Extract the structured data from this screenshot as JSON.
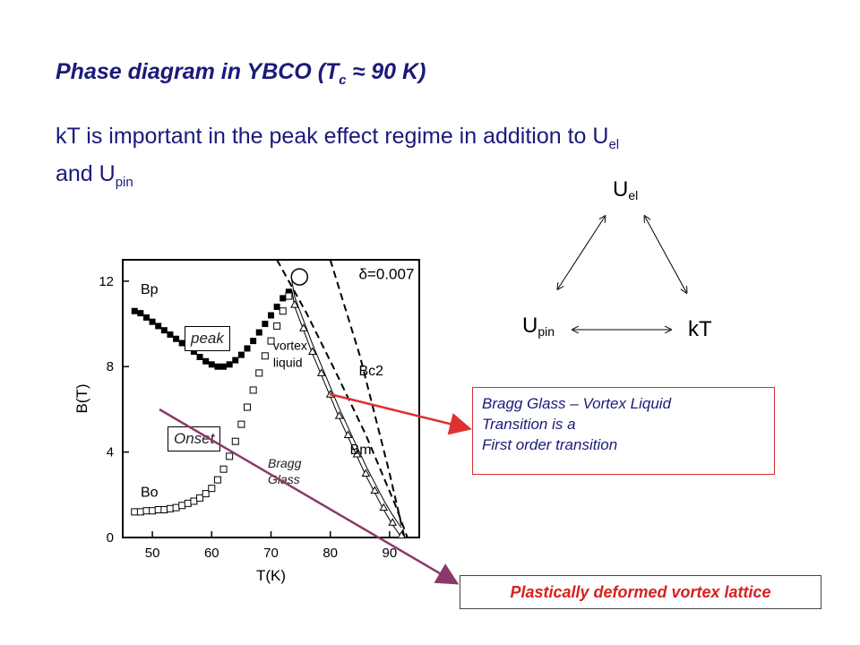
{
  "title": {
    "prefix": "Phase diagram in YBCO (T",
    "sub": "c",
    "approx": "≈",
    "suffix": " 90 K)"
  },
  "subtitle": {
    "part1": "kT is important in the peak effect regime in addition to U",
    "sub1": "el",
    "part2": "and U",
    "sub2": "pin"
  },
  "triangle": {
    "top_main": "U",
    "top_sub": "el",
    "left_main": "U",
    "left_sub": "pin",
    "right": "kT"
  },
  "labels": {
    "peak": "peak",
    "onset": "Onset",
    "bragg_line1": "Bragg",
    "bragg_line2": "Glass"
  },
  "callout": {
    "line1": "Bragg Glass – Vortex Liquid",
    "line2": "Transition is a",
    "line3": "First order transition"
  },
  "plastic": "Plastically deformed vortex lattice",
  "colors": {
    "title": "#1a1a7a",
    "callout_border": "#d93030",
    "callout_arrow": "#e03030",
    "onset_arrow": "#8a3a6a",
    "plastic_text": "#d82020"
  },
  "chart_data": {
    "type": "scatter",
    "xlabel": "T(K)",
    "ylabel": "B(T)",
    "xlim": [
      45,
      95
    ],
    "ylim": [
      0,
      13
    ],
    "x_ticks": [
      50,
      60,
      70,
      80,
      90
    ],
    "y_ticks": [
      0,
      4,
      8,
      12
    ],
    "annotation_delta": "δ=0.007",
    "series": [
      {
        "name": "Bp",
        "marker": "filled-square",
        "x": [
          47,
          48,
          49,
          50,
          51,
          52,
          53,
          54,
          55,
          56,
          57,
          58,
          59,
          60,
          61,
          62,
          63,
          64,
          65,
          66,
          67,
          68,
          69,
          70,
          71,
          72,
          73
        ],
        "y": [
          10.6,
          10.5,
          10.3,
          10.1,
          9.9,
          9.7,
          9.5,
          9.3,
          9.1,
          8.9,
          8.7,
          8.45,
          8.25,
          8.1,
          8.0,
          8.0,
          8.1,
          8.3,
          8.55,
          8.85,
          9.2,
          9.6,
          10.0,
          10.4,
          10.8,
          11.2,
          11.5
        ]
      },
      {
        "name": "Bo",
        "marker": "open-square",
        "x": [
          47,
          48,
          49,
          50,
          51,
          52,
          53,
          54,
          55,
          56,
          57,
          58,
          59,
          60,
          61,
          62,
          63,
          64,
          65,
          66,
          67,
          68,
          69,
          70,
          71,
          72,
          73
        ],
        "y": [
          1.2,
          1.2,
          1.25,
          1.25,
          1.3,
          1.3,
          1.35,
          1.4,
          1.5,
          1.6,
          1.7,
          1.85,
          2.05,
          2.3,
          2.7,
          3.2,
          3.8,
          4.5,
          5.3,
          6.1,
          6.9,
          7.7,
          8.5,
          9.2,
          9.9,
          10.6,
          11.3
        ]
      },
      {
        "name": "Bm",
        "marker": "open-triangle",
        "x": [
          74,
          75.5,
          77,
          78.5,
          80,
          81.5,
          83,
          84.5,
          86,
          87.5,
          89,
          90.5,
          92
        ],
        "y": [
          10.9,
          9.8,
          8.7,
          7.7,
          6.7,
          5.7,
          4.8,
          3.9,
          3.0,
          2.2,
          1.4,
          0.7,
          0.1
        ]
      },
      {
        "name": "Bc2",
        "marker": "dashed-line",
        "x": [
          71,
          76,
          81,
          86,
          91,
          93
        ],
        "y": [
          13,
          10.5,
          7.7,
          4.8,
          1.5,
          0
        ]
      },
      {
        "name": "δ=0.007",
        "marker": "dashed-line",
        "x": [
          80,
          85,
          90,
          92.5
        ],
        "y": [
          13,
          8.5,
          3.0,
          0
        ]
      }
    ]
  }
}
